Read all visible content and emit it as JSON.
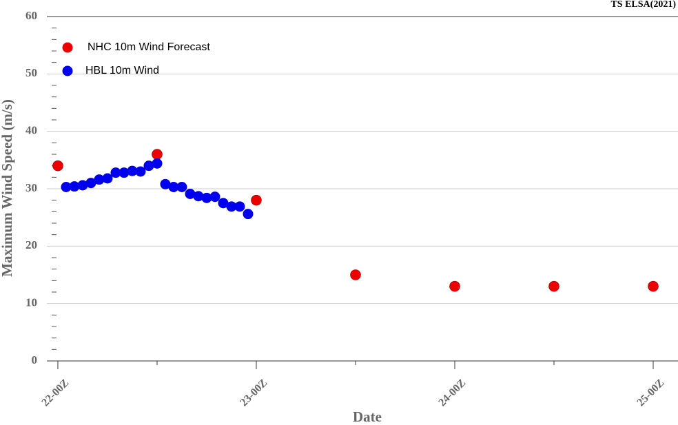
{
  "chart_data": {
    "type": "scatter",
    "title": "TS ELSA(2021)",
    "xlabel": "Date",
    "ylabel": "Maximum Wind Speed (m/s)",
    "series": [
      {
        "name": "NHC 10m Wind Forecast",
        "color": "#ee0000",
        "x": [
          0,
          12,
          24,
          36,
          48,
          60,
          72
        ],
        "values": [
          34,
          36,
          28,
          15,
          13,
          13,
          13
        ]
      },
      {
        "name": "HBL 10m Wind",
        "color": "#0000ee",
        "x": [
          1,
          2,
          3,
          4,
          5,
          6,
          7,
          8,
          9,
          10,
          11,
          12,
          13,
          14,
          15,
          16,
          17,
          18,
          19,
          20,
          21,
          22,
          23
        ],
        "values": [
          30.3,
          30.4,
          30.6,
          31.0,
          31.6,
          31.8,
          32.8,
          32.8,
          33.1,
          33.0,
          34.0,
          34.4,
          30.8,
          30.3,
          30.3,
          29.1,
          28.7,
          28.4,
          28.6,
          27.5,
          26.9,
          26.9,
          25.6
        ]
      }
    ],
    "xlim": [
      -1.33,
      75
    ],
    "xticks": [
      {
        "value": 0,
        "label": "22-00Z"
      },
      {
        "value": 24,
        "label": "23-00Z"
      },
      {
        "value": 48,
        "label": "24-00Z"
      },
      {
        "value": 72,
        "label": "25-00Z"
      }
    ],
    "xminorticks": [
      12,
      36,
      60
    ],
    "ylim": [
      0,
      60
    ],
    "yticks": [
      0,
      10,
      20,
      30,
      40,
      50,
      60
    ],
    "yminorticks": [
      2,
      4,
      6,
      8,
      12,
      14,
      16,
      18,
      22,
      24,
      26,
      28,
      32,
      34,
      36,
      38,
      42,
      44,
      46,
      48,
      52,
      54,
      56,
      58
    ],
    "grid": true,
    "legend": "upper left"
  }
}
